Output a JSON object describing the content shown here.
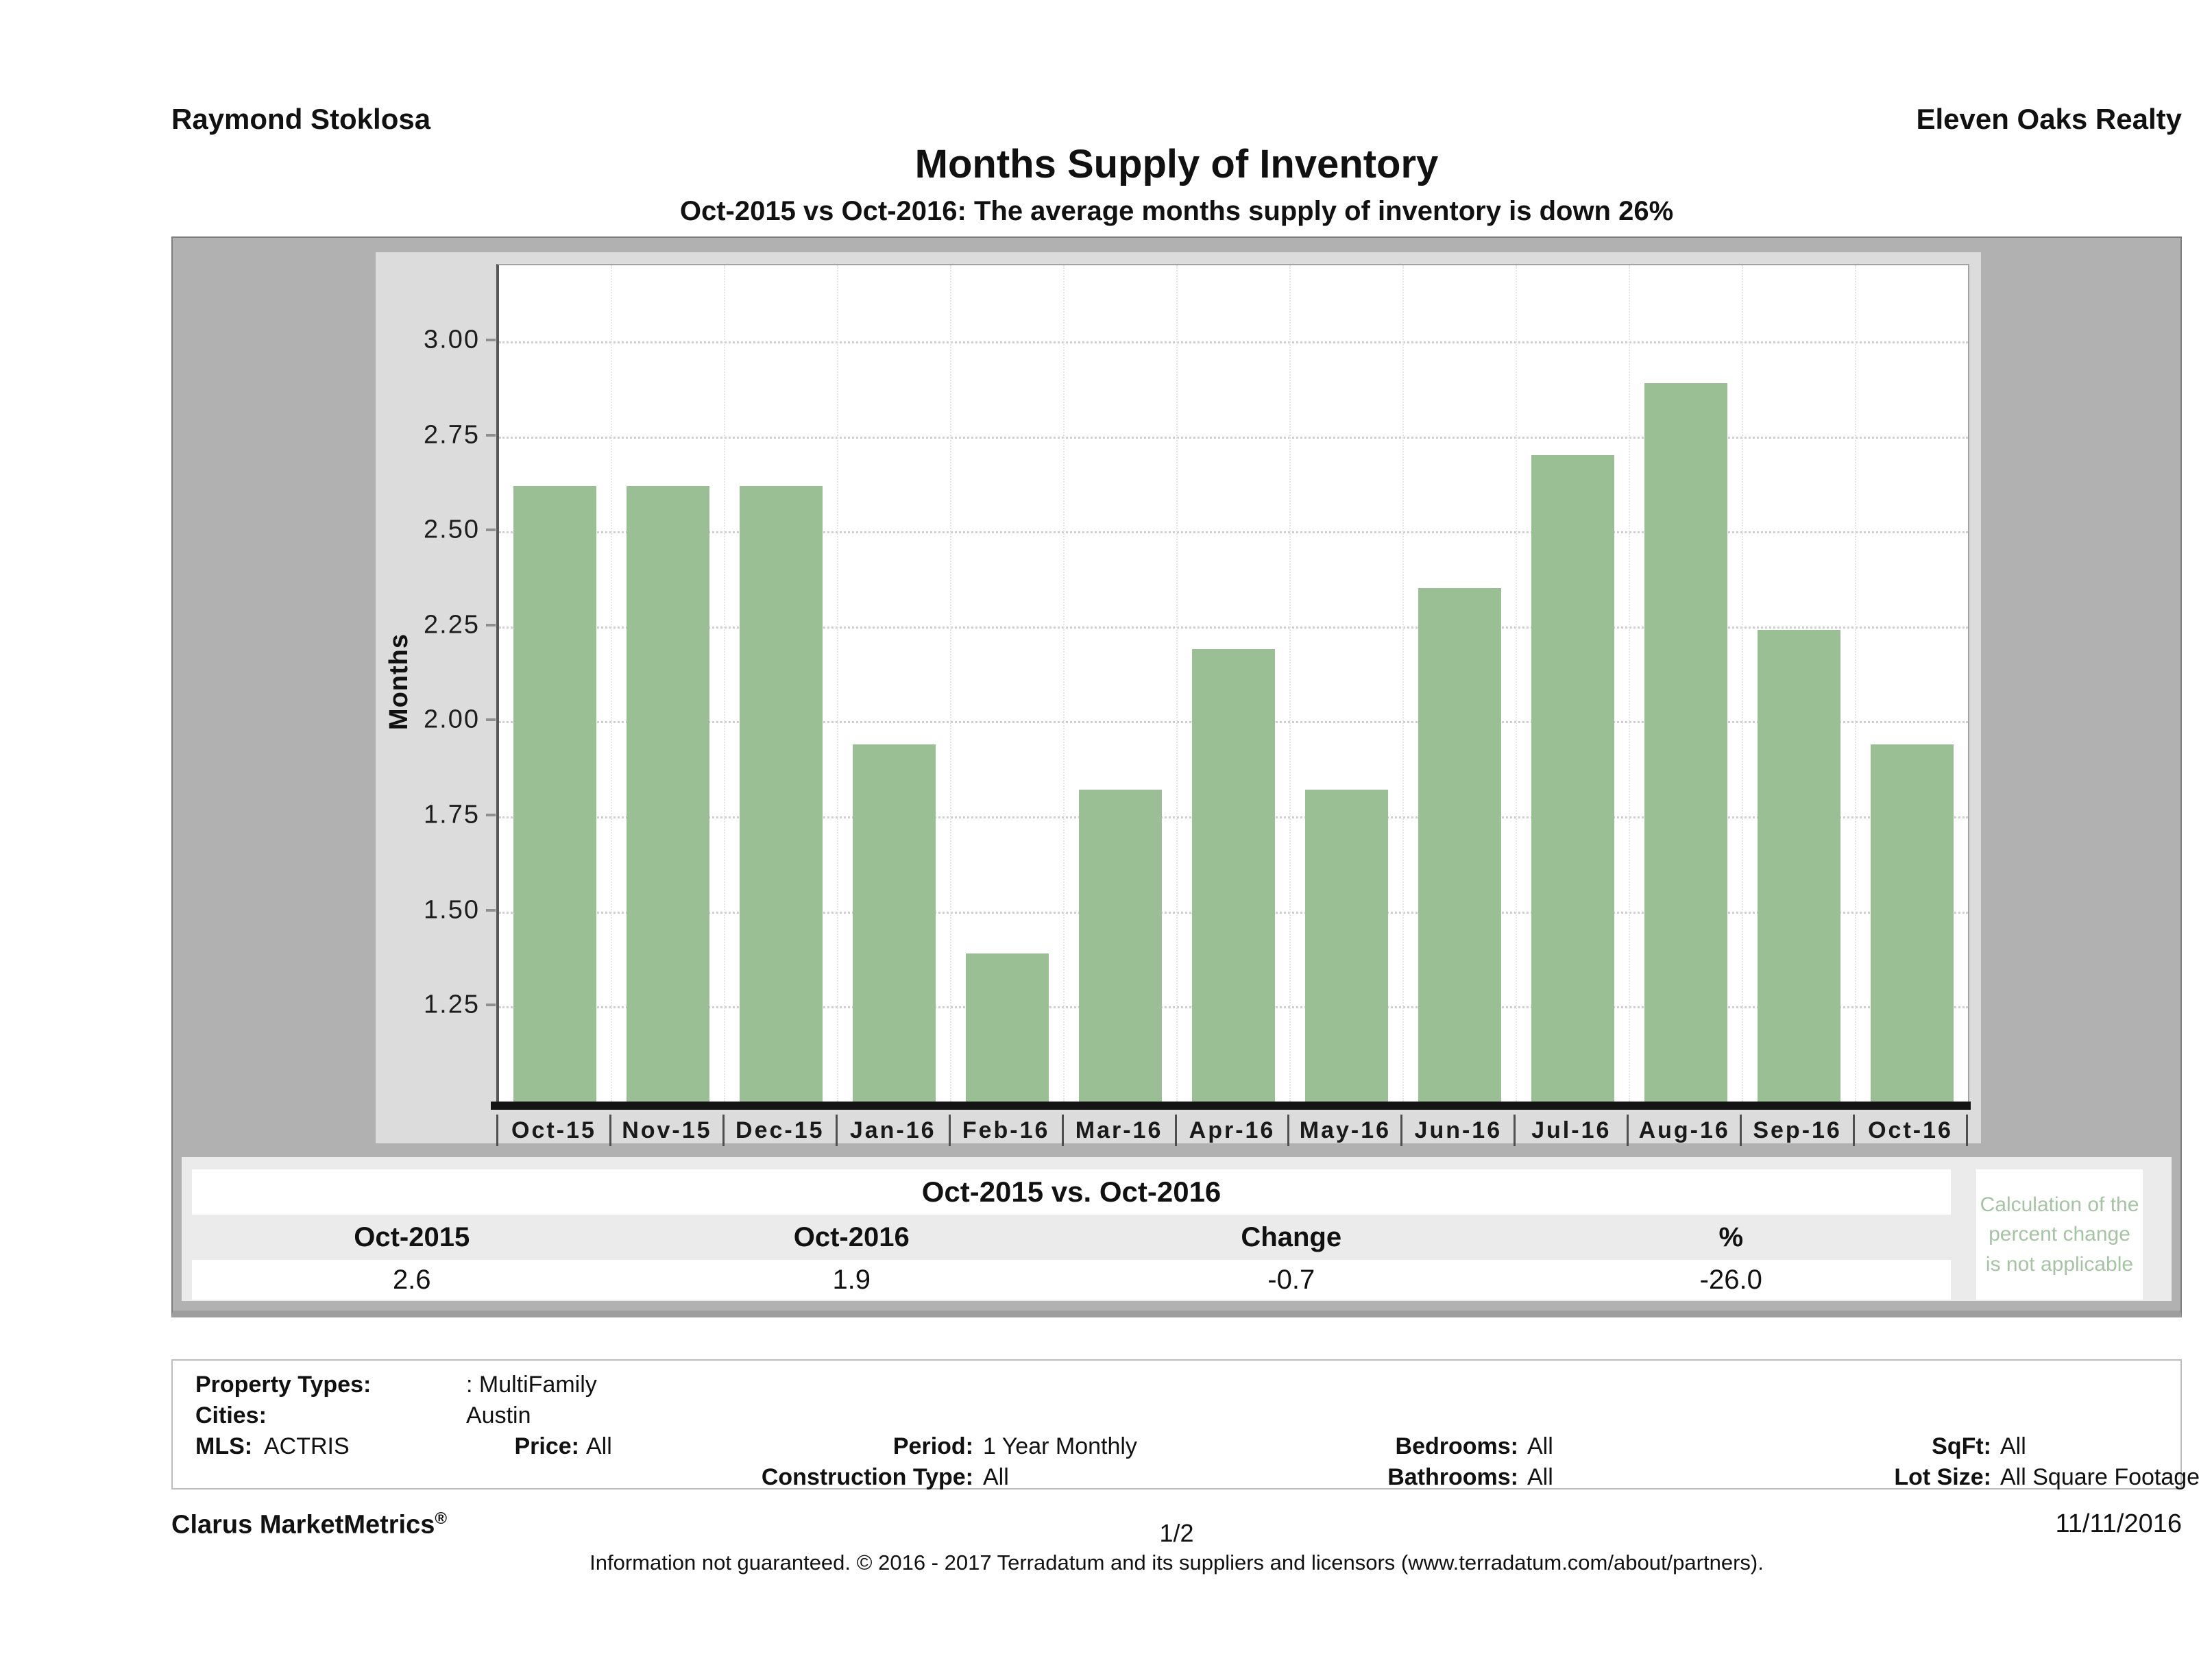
{
  "header": {
    "agent": "Raymond Stoklosa",
    "company": "Eleven Oaks Realty"
  },
  "titles": {
    "main": "Months Supply of Inventory",
    "sub": "Oct-2015 vs Oct-2016: The average months supply of inventory is down 26%"
  },
  "chart_data": {
    "type": "bar",
    "title": "Months Supply of Inventory",
    "xlabel": "",
    "ylabel": "Months",
    "categories": [
      "Oct-15",
      "Nov-15",
      "Dec-15",
      "Jan-16",
      "Feb-16",
      "Mar-16",
      "Apr-16",
      "May-16",
      "Jun-16",
      "Jul-16",
      "Aug-16",
      "Sep-16",
      "Oct-16"
    ],
    "values": [
      2.62,
      2.62,
      2.62,
      1.94,
      1.39,
      1.82,
      2.19,
      1.82,
      2.35,
      2.7,
      2.89,
      2.24,
      1.94
    ],
    "ylim": [
      1.0,
      3.2
    ],
    "yticks": [
      "3.00",
      "2.75",
      "2.50",
      "2.25",
      "2.00",
      "1.75",
      "1.50",
      "1.25"
    ],
    "grid": "dotted-horizontal",
    "legend": "none",
    "bar_color": "#9abf94"
  },
  "summary": {
    "title": "Oct-2015 vs. Oct-2016",
    "columns": [
      "Oct-2015",
      "Oct-2016",
      "Change",
      "%"
    ],
    "values": [
      "2.6",
      "1.9",
      "-0.7",
      "-26.0"
    ],
    "note_lines": [
      "Calculation of the",
      "percent change",
      "is not applicable"
    ],
    "note_color": "#a6c4a3"
  },
  "filters": {
    "property_types": {
      "label": "Property Types:",
      "value": ": MultiFamily"
    },
    "cities": {
      "label": "Cities:",
      "value": "Austin"
    },
    "mls": {
      "label": "MLS:",
      "value": "ACTRIS"
    },
    "price": {
      "label": "Price:",
      "value": "All"
    },
    "period": {
      "label": "Period:",
      "value": "1 Year Monthly"
    },
    "bedrooms": {
      "label": "Bedrooms:",
      "value": "All"
    },
    "sqft": {
      "label": "SqFt:",
      "value": "All"
    },
    "construction_type": {
      "label": "Construction Type:",
      "value": "All"
    },
    "bathrooms": {
      "label": "Bathrooms:",
      "value": "All"
    },
    "lot_size": {
      "label": "Lot Size:",
      "value": "All Square Footage"
    }
  },
  "footer": {
    "brand": "Clarus MarketMetrics",
    "brand_reg": "®",
    "page": "1/2",
    "date": "11/11/2016",
    "disclaimer": "Information not guaranteed. © 2016 - 2017 Terradatum and its suppliers and licensors (www.terradatum.com/about/partners)."
  }
}
